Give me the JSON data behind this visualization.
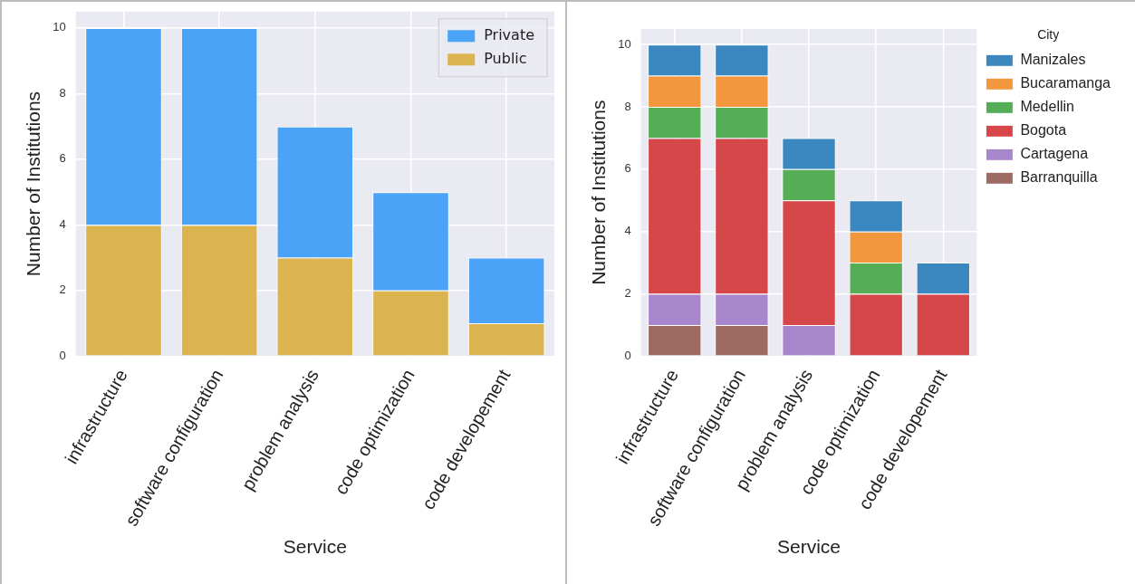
{
  "chart_data": [
    {
      "type": "bar",
      "xlabel": "Service",
      "ylabel": "Number of Institutions",
      "categories": [
        "infrastructure",
        "software configuration",
        "problem analysis",
        "code optimization",
        "code developement"
      ],
      "stacked": true,
      "series": [
        {
          "name": "Public",
          "color": "#dbb44f",
          "values": [
            4,
            4,
            3,
            2,
            1
          ]
        },
        {
          "name": "Private",
          "color": "#4ba3f8",
          "values": [
            6,
            6,
            4,
            3,
            2
          ]
        }
      ],
      "ylim": [
        0,
        10.5
      ],
      "yticks": [
        0,
        2,
        4,
        6,
        8,
        10
      ],
      "grid": true,
      "legend": "top right"
    },
    {
      "type": "bar",
      "xlabel": "Service",
      "ylabel": "Number of Institutions",
      "legend_title": "City",
      "categories": [
        "infrastructure",
        "software configuration",
        "problem analysis",
        "code optimization",
        "code developement"
      ],
      "stacked": true,
      "series": [
        {
          "name": "Barranquilla",
          "color": "#9d6b61",
          "values": [
            1,
            1,
            0,
            0,
            0
          ]
        },
        {
          "name": "Cartagena",
          "color": "#a886cc",
          "values": [
            1,
            1,
            1,
            0,
            0
          ]
        },
        {
          "name": "Bogota",
          "color": "#d6474a",
          "values": [
            5,
            5,
            4,
            2,
            2
          ]
        },
        {
          "name": "Medellin",
          "color": "#55ad55",
          "values": [
            1,
            1,
            1,
            1,
            0
          ]
        },
        {
          "name": "Bucaramanga",
          "color": "#f3973f",
          "values": [
            1,
            1,
            0,
            1,
            0
          ]
        },
        {
          "name": "Manizales",
          "color": "#3b87c0",
          "values": [
            1,
            1,
            1,
            1,
            1
          ]
        }
      ],
      "ylim": [
        0,
        10.5
      ],
      "yticks": [
        0,
        2,
        4,
        6,
        8,
        10
      ],
      "grid": true,
      "legend": "right"
    }
  ]
}
